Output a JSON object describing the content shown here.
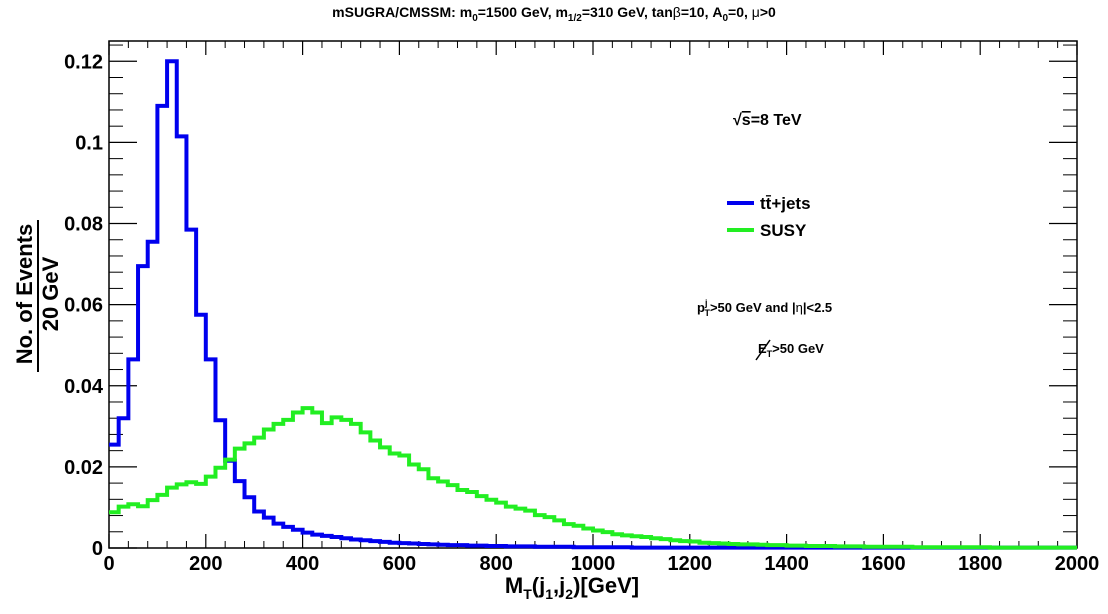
{
  "chart_data": {
    "type": "line",
    "title_parts": {
      "a": "mSUGRA/CMSSM: m",
      "a_sub": "0",
      "b": "=1500 GeV, m",
      "b_sub": "1/2",
      "c": "=310 GeV, tan",
      "beta": "β",
      "d": "=10, A",
      "d_sub": "0",
      "e": "=0, ",
      "mu": "μ",
      "f": ">0"
    },
    "xlabel": {
      "main": "M",
      "sub1": "T",
      "mid": "(j",
      "sub2": "1",
      "comma": ",j",
      "sub3": "2",
      "end": ")[GeV]"
    },
    "ylabel": {
      "numerator": "No. of Events",
      "denominator": "20 GeV"
    },
    "xlim": [
      0,
      2000
    ],
    "ylim": [
      0,
      0.125
    ],
    "xticks": [
      0,
      200,
      400,
      600,
      800,
      1000,
      1200,
      1400,
      1600,
      1800,
      2000
    ],
    "yticks": [
      0,
      0.02,
      0.04,
      0.06,
      0.08,
      0.1,
      0.12
    ],
    "ytick_labels": [
      "0",
      "0.02",
      "0.04",
      "0.06",
      "0.08",
      "0.1",
      "0.12"
    ],
    "bin_width": 20,
    "series": [
      {
        "name": "tt̄+jets",
        "color": "#0000ee",
        "values": [
          0.0255,
          0.032,
          0.0465,
          0.0695,
          0.0755,
          0.109,
          0.12,
          0.1015,
          0.0785,
          0.0575,
          0.0465,
          0.0315,
          0.0215,
          0.0165,
          0.0125,
          0.009,
          0.0075,
          0.006,
          0.0052,
          0.0045,
          0.0038,
          0.0033,
          0.003,
          0.0027,
          0.0024,
          0.0021,
          0.0019,
          0.0017,
          0.0015,
          0.0013,
          0.0012,
          0.0011,
          0.001,
          0.0009,
          0.0008,
          0.0007,
          0.0007,
          0.0006,
          0.0006,
          0.0005,
          0.0005,
          0.0004,
          0.0004,
          0.0004,
          0.0003,
          0.0003,
          0.0003,
          0.0003,
          0.0002,
          0.0002,
          0.0002,
          0.0002,
          0.0002,
          0.0002,
          0.0001,
          0.0001,
          0.0001,
          0.0001,
          0.0001,
          0.0001,
          0.0001,
          0.0001,
          0.0001,
          0.0001,
          0.0001,
          0.0001,
          0.0001,
          0.0001,
          0.0001,
          0.0001,
          0.0001,
          0.0001,
          0.0001,
          0.0001,
          0.0001,
          0.0001,
          0.0001,
          0.0001,
          0.0001,
          0.0001,
          0.0001,
          0.0001,
          0.0001,
          0.0001,
          0.0001,
          0.0001,
          0.0001,
          0.0001,
          0.0001,
          0.0001,
          0.0001,
          0.0001,
          0.0001,
          0.0001,
          0.0001,
          0.0001,
          0.0001,
          0.0001,
          0.0001,
          0.0001
        ]
      },
      {
        "name": "SUSY",
        "color": "#22ee22",
        "values": [
          0.0088,
          0.0102,
          0.0108,
          0.0103,
          0.0118,
          0.0131,
          0.0149,
          0.0157,
          0.0162,
          0.0158,
          0.0176,
          0.0198,
          0.0218,
          0.0245,
          0.0258,
          0.0272,
          0.0292,
          0.0306,
          0.0316,
          0.0334,
          0.0345,
          0.0334,
          0.0308,
          0.0322,
          0.0316,
          0.0306,
          0.0285,
          0.0265,
          0.0248,
          0.0233,
          0.0228,
          0.0206,
          0.0194,
          0.0172,
          0.0164,
          0.0155,
          0.0143,
          0.0138,
          0.0128,
          0.0119,
          0.0112,
          0.0102,
          0.0097,
          0.0092,
          0.0081,
          0.0076,
          0.0068,
          0.0059,
          0.0055,
          0.0048,
          0.0043,
          0.0039,
          0.0034,
          0.0031,
          0.0029,
          0.0027,
          0.0024,
          0.0022,
          0.0019,
          0.0017,
          0.0016,
          0.0013,
          0.0012,
          0.0011,
          0.001,
          0.0009,
          0.0009,
          0.0008,
          0.0007,
          0.0007,
          0.0006,
          0.0006,
          0.0005,
          0.0005,
          0.0005,
          0.0004,
          0.0004,
          0.0004,
          0.0003,
          0.0003,
          0.0003,
          0.0003,
          0.0003,
          0.0002,
          0.0002,
          0.0002,
          0.0002,
          0.0002,
          0.0002,
          0.0002,
          0.0002,
          0.0001,
          0.0001,
          0.0001,
          0.0001,
          0.0001,
          0.0001,
          0.0001,
          0.0001,
          0.0001
        ]
      }
    ],
    "legend": {
      "placement": "center-right",
      "entries": [
        "tt̄+jets",
        "SUSY"
      ]
    },
    "annotations": {
      "energy": {
        "sqrt": "√",
        "s": "s",
        "rest": "=8 TeV"
      },
      "pt_cut": {
        "p": "p",
        "sup": "j",
        "sub": "T",
        "rest": ">50 GeV and |",
        "eta": "η",
        "rest2": "|<2.5"
      },
      "met_cut": {
        "e": "E",
        "sub": "T",
        "rest": ">50 GeV"
      }
    },
    "grid": false
  }
}
